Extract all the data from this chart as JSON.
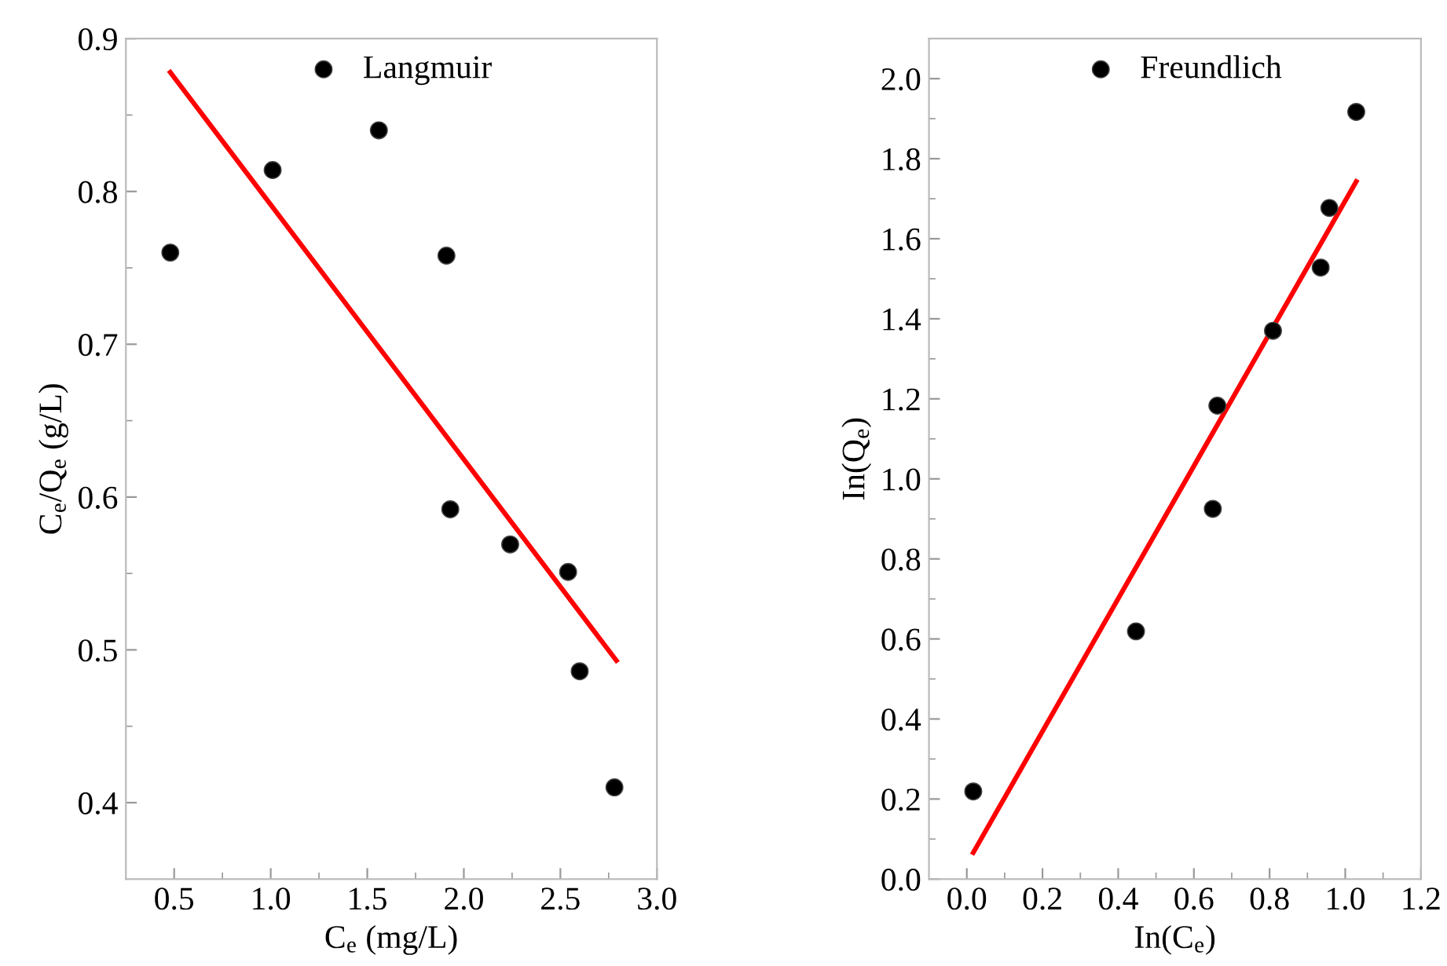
{
  "chart_data": [
    {
      "type": "scatter",
      "xlabel": "C$_{e}$ (mg/L)",
      "ylabel": "C$_{e}$/Q$_{e}$ (g/L)",
      "legend": "top",
      "grid": false,
      "marker": "circle",
      "xlim": [
        0.25,
        3.0
      ],
      "ylim": [
        0.35,
        0.9
      ],
      "xticks": [
        0.5,
        {
          "value": 0.75,
          "label": null
        },
        {
          "value": 1,
          "label": "1.0"
        },
        {
          "value": 1.25,
          "label": null
        },
        1.5,
        {
          "value": 1.75,
          "label": null
        },
        {
          "value": 2,
          "label": "2.0"
        },
        {
          "value": 2.25,
          "label": null
        },
        2.5,
        {
          "value": 2.75,
          "label": null
        },
        {
          "value": 3,
          "label": "3.0"
        }
      ],
      "yticks": [
        0.4,
        {
          "value": 0.45,
          "label": null
        },
        0.5,
        {
          "value": 0.55,
          "label": null
        },
        0.6,
        {
          "value": 0.65,
          "label": null
        },
        0.7,
        {
          "value": 0.75,
          "label": null
        },
        0.8,
        {
          "value": 0.85,
          "label": null
        },
        0.9
      ],
      "series": [
        {
          "name": "Langmuir",
          "color": "#000000",
          "x": [
            0.48,
            1.01,
            1.56,
            1.91,
            1.93,
            2.24,
            2.54,
            2.6,
            2.78
          ],
          "values": [
            0.76,
            0.814,
            0.84,
            0.758,
            0.592,
            0.569,
            0.551,
            0.486,
            0.41
          ]
        },
        {
          "type": "line",
          "color": "#ff0000",
          "marker": "none",
          "x": [
            0.48,
            2.79
          ],
          "values": [
            0.878,
            0.493
          ]
        }
      ]
    },
    {
      "type": "scatter",
      "xlabel": "In(C$_{e}$)",
      "ylabel": "In(Q$_{e}$)",
      "legend": "top",
      "grid": false,
      "marker": "circle",
      "xlim": [
        -0.1,
        1.2
      ],
      "ylim": [
        0.0,
        2.1
      ],
      "xticks": [
        {
          "value": 0,
          "label": "0.0"
        },
        {
          "value": 0.1,
          "label": null
        },
        0.2,
        {
          "value": 0.3,
          "label": null
        },
        0.4,
        {
          "value": 0.5,
          "label": null
        },
        0.6,
        {
          "value": 0.7,
          "label": null
        },
        0.8,
        {
          "value": 0.9,
          "label": null
        },
        {
          "value": 1,
          "label": "1.0"
        },
        {
          "value": 1.1,
          "label": null
        },
        1.2
      ],
      "yticks": [
        {
          "value": 0,
          "label": "0.0"
        },
        {
          "value": 0.1,
          "label": null
        },
        0.2,
        {
          "value": 0.3,
          "label": null
        },
        0.4,
        {
          "value": 0.5,
          "label": null
        },
        0.6,
        {
          "value": 0.7,
          "label": null
        },
        0.8,
        {
          "value": 0.9,
          "label": null
        },
        {
          "value": 1,
          "label": "1.0"
        },
        {
          "value": 1.1,
          "label": null
        },
        1.2,
        {
          "value": 1.3,
          "label": null
        },
        1.4,
        {
          "value": 1.5,
          "label": null
        },
        1.6,
        {
          "value": 1.7,
          "label": null
        },
        1.8,
        {
          "value": 1.9,
          "label": null
        },
        {
          "value": 2,
          "label": "2.0"
        }
      ],
      "series": [
        {
          "name": "Freundlich",
          "color": "#000000",
          "x": [
            0.017,
            0.447,
            0.65,
            0.662,
            0.809,
            0.935,
            0.958,
            1.029
          ],
          "values": [
            0.219,
            0.619,
            0.925,
            1.183,
            1.37,
            1.528,
            1.677,
            1.917
          ]
        },
        {
          "type": "line",
          "color": "#ff0000",
          "marker": "none",
          "x": [
            0.017,
            1.029
          ],
          "values": [
            0.066,
            1.743
          ]
        }
      ]
    }
  ]
}
